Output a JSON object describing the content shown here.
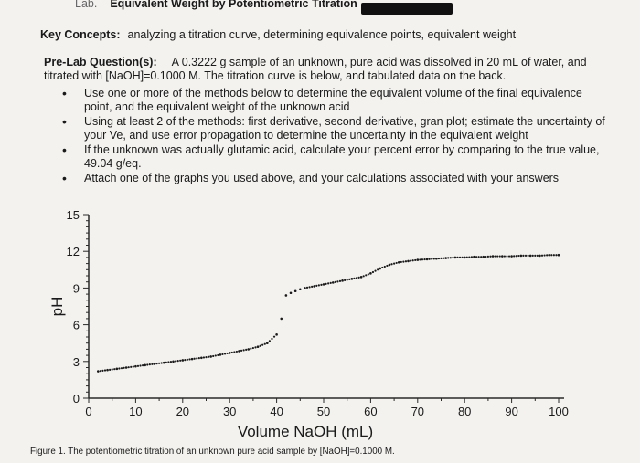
{
  "header": {
    "lab_prefix": "Lab.",
    "title": "Equivalent Weight by Potentiometric Titration"
  },
  "key_concepts": {
    "label": "Key Concepts:",
    "text": "analyzing a titration curve, determining equivalence points, equivalent weight"
  },
  "prelab": {
    "label": "Pre-Lab Question(s):",
    "text": "A 0.3222 g sample of an unknown, pure acid was dissolved in 20 mL of water, and titrated with [NaOH]=0.1000 M. The titration curve is below, and tabulated data on the back."
  },
  "bullets": [
    "Use one or more of the methods below to determine the equivalent volume of the final equivalence point, and the equivalent weight of the unknown acid",
    "Using at least 2 of the methods: first derivative, second derivative, gran plot; estimate the uncertainty of your Ve, and use error propagation to determine the uncertainty in the equivalent weight",
    "If the unknown was actually glutamic acid, calculate your percent error by comparing to the true value, 49.04 g/eq.",
    "Attach one of the graphs you used above, and your calculations associated with your answers"
  ],
  "chart_data": {
    "type": "scatter",
    "xlabel": "Volume NaOH (mL)",
    "ylabel": "pH",
    "xlim": [
      0,
      100
    ],
    "ylim": [
      0,
      15
    ],
    "xticks": [
      0,
      10,
      20,
      30,
      40,
      50,
      60,
      70,
      80,
      90,
      100
    ],
    "yticks": [
      0,
      3,
      6,
      9,
      12,
      15
    ],
    "grid": false,
    "series": [
      {
        "x": [
          2,
          4,
          6,
          8,
          10,
          12,
          14,
          16,
          18,
          20,
          22,
          24,
          26,
          28,
          30,
          32,
          34,
          36,
          38,
          40,
          41,
          42,
          43,
          44,
          45,
          46,
          48,
          50,
          52,
          54,
          56,
          58,
          60,
          62,
          64,
          66,
          68,
          70,
          72,
          74,
          76,
          78,
          80,
          82,
          84,
          86,
          88,
          90,
          92,
          94,
          96,
          98,
          100
        ],
        "y": [
          2.2,
          2.3,
          2.4,
          2.5,
          2.6,
          2.7,
          2.8,
          2.9,
          3.0,
          3.1,
          3.2,
          3.3,
          3.4,
          3.55,
          3.7,
          3.85,
          4.0,
          4.2,
          4.5,
          5.2,
          6.5,
          8.4,
          8.6,
          8.75,
          8.9,
          9.0,
          9.15,
          9.3,
          9.45,
          9.6,
          9.75,
          9.9,
          10.2,
          10.6,
          10.9,
          11.1,
          11.2,
          11.3,
          11.35,
          11.4,
          11.45,
          11.5,
          11.5,
          11.55,
          11.55,
          11.6,
          11.6,
          11.6,
          11.65,
          11.65,
          11.65,
          11.7,
          11.7
        ]
      }
    ]
  },
  "caption": "Figure 1. The potentiometric titration of an unknown pure acid sample by [NaOH]=0.1000 M."
}
